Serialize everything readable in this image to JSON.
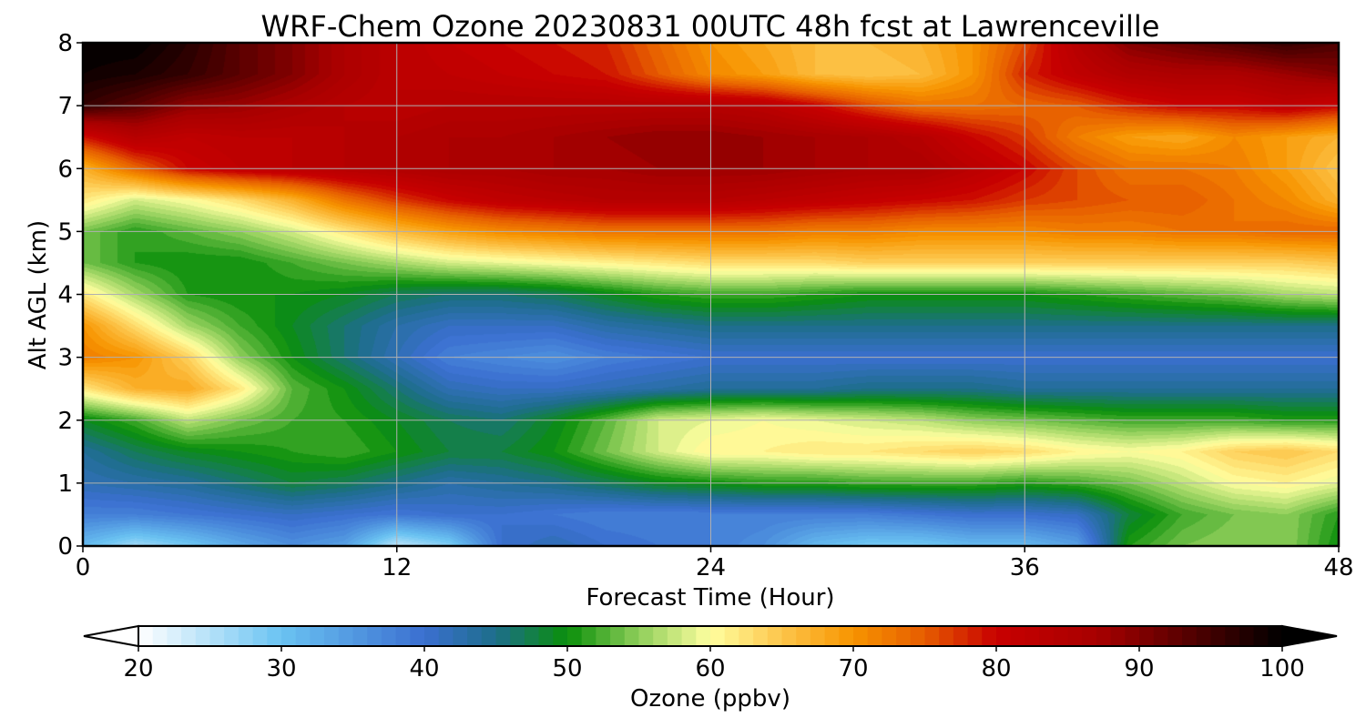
{
  "chart_data": {
    "type": "heatmap",
    "title": "WRF-Chem Ozone  20230831 00UTC 48h fcst at Lawrenceville",
    "xlabel": "Forecast Time (Hour)",
    "ylabel": "Alt AGL (km)",
    "xlim": [
      0,
      48
    ],
    "ylim": [
      0,
      8
    ],
    "xticks": [
      0,
      12,
      24,
      36,
      48
    ],
    "yticks": [
      0,
      1,
      2,
      3,
      4,
      5,
      6,
      7,
      8
    ],
    "grid": true,
    "colorbar": {
      "label": "Ozone  (ppbv)",
      "orientation": "horizontal",
      "ticks": [
        20,
        30,
        40,
        50,
        60,
        70,
        80,
        90,
        100
      ],
      "range": [
        20,
        100
      ],
      "extend": "both",
      "stops": [
        {
          "v": 20,
          "c": "#ffffff"
        },
        {
          "v": 30,
          "c": "#6ac3f2"
        },
        {
          "v": 40,
          "c": "#3b6fd0"
        },
        {
          "v": 45,
          "c": "#1d6e8a"
        },
        {
          "v": 50,
          "c": "#0a8f0a"
        },
        {
          "v": 55,
          "c": "#8fce5a"
        },
        {
          "v": 60,
          "c": "#ffffa0"
        },
        {
          "v": 65,
          "c": "#fdc54a"
        },
        {
          "v": 70,
          "c": "#f79400"
        },
        {
          "v": 75,
          "c": "#e65c00"
        },
        {
          "v": 80,
          "c": "#c80000"
        },
        {
          "v": 87,
          "c": "#a80000"
        },
        {
          "v": 93,
          "c": "#5a0000"
        },
        {
          "v": 100,
          "c": "#000000"
        }
      ]
    },
    "x": [
      0,
      2,
      4,
      6,
      8,
      10,
      12,
      14,
      16,
      18,
      20,
      22,
      24,
      26,
      28,
      30,
      32,
      34,
      36,
      38,
      40,
      42,
      44,
      46,
      48
    ],
    "y": [
      0,
      0.5,
      1,
      1.5,
      2,
      2.5,
      3,
      3.5,
      4,
      4.5,
      5,
      5.5,
      6,
      6.5,
      7,
      7.5,
      8
    ],
    "z": [
      [
        31,
        26,
        29,
        33,
        36,
        34,
        24,
        28,
        40,
        42,
        40,
        39,
        38,
        36,
        31,
        29,
        29,
        31,
        31,
        34,
        51,
        54,
        55,
        55,
        50
      ],
      [
        38,
        38,
        39,
        40,
        41,
        40,
        39,
        40,
        40,
        39,
        38,
        38,
        38,
        38,
        38,
        38,
        39,
        40,
        40,
        41,
        48,
        52,
        54,
        55,
        51
      ],
      [
        42,
        43,
        44,
        46,
        48,
        47,
        45,
        43,
        44,
        45,
        47,
        49,
        50,
        51,
        51,
        52,
        52,
        52,
        51,
        52,
        54,
        57,
        60,
        61,
        59
      ],
      [
        44,
        47,
        49,
        50,
        51,
        52,
        50,
        48,
        48,
        50,
        54,
        58,
        61,
        61,
        62,
        62,
        63,
        64,
        63,
        61,
        60,
        61,
        64,
        65,
        63
      ],
      [
        49,
        52,
        57,
        54,
        52,
        51,
        49,
        47,
        46,
        49,
        53,
        58,
        59,
        60,
        59,
        58,
        57,
        55,
        54,
        53,
        52,
        52,
        52,
        51,
        51
      ],
      [
        62,
        67,
        68,
        62,
        53,
        50,
        46,
        42,
        41,
        41,
        42,
        43,
        44,
        44,
        44,
        45,
        45,
        45,
        44,
        44,
        44,
        44,
        44,
        44,
        44
      ],
      [
        72,
        70,
        64,
        55,
        50,
        46,
        42,
        38,
        37,
        36,
        38,
        39,
        40,
        40,
        40,
        40,
        40,
        40,
        40,
        40,
        40,
        40,
        40,
        40,
        40
      ],
      [
        70,
        63,
        56,
        52,
        49,
        46,
        43,
        41,
        41,
        41,
        43,
        44,
        45,
        45,
        45,
        45,
        45,
        45,
        45,
        45,
        45,
        45,
        45,
        45,
        45
      ],
      [
        62,
        56,
        51,
        50,
        50,
        49,
        47,
        46,
        46,
        47,
        49,
        51,
        52,
        52,
        51,
        50,
        50,
        50,
        50,
        51,
        52,
        53,
        54,
        56,
        57
      ],
      [
        54,
        51,
        50,
        50,
        52,
        54,
        56,
        58,
        59,
        60,
        61,
        62,
        63,
        63,
        63,
        64,
        64,
        64,
        64,
        64,
        64,
        64,
        64,
        64,
        65
      ],
      [
        54,
        51,
        53,
        55,
        58,
        62,
        66,
        69,
        71,
        72,
        73,
        73,
        73,
        73,
        72,
        72,
        71,
        71,
        71,
        72,
        72,
        73,
        73,
        74,
        74
      ],
      [
        62,
        58,
        60,
        63,
        67,
        73,
        77,
        80,
        82,
        83,
        84,
        84,
        84,
        83,
        82,
        81,
        80,
        79,
        77,
        76,
        75,
        75,
        73,
        71,
        67
      ],
      [
        67,
        74,
        80,
        82,
        83,
        84,
        85,
        86,
        86,
        87,
        87,
        88,
        88,
        88,
        87,
        86,
        86,
        83,
        80,
        76,
        73,
        73,
        72,
        69,
        65
      ],
      [
        79,
        84,
        82,
        83,
        83,
        84,
        85,
        86,
        86,
        87,
        88,
        89,
        89,
        88,
        87,
        86,
        84,
        80,
        77,
        72,
        69,
        68,
        71,
        69,
        67
      ],
      [
        96,
        93,
        89,
        88,
        86,
        84,
        83,
        84,
        84,
        84,
        84,
        84,
        84,
        83,
        80,
        76,
        73,
        73,
        74,
        75,
        78,
        80,
        80,
        82,
        80
      ],
      [
        99,
        98,
        96,
        93,
        90,
        86,
        83,
        82,
        81,
        80,
        79,
        75,
        71,
        69,
        66,
        65,
        66,
        70,
        78,
        82,
        85,
        86,
        86,
        88,
        90
      ],
      [
        100,
        100,
        97,
        93,
        90,
        86,
        83,
        81,
        80,
        79,
        78,
        74,
        70,
        68,
        66,
        66,
        67,
        70,
        76,
        84,
        90,
        92,
        94,
        96,
        94
      ]
    ]
  }
}
